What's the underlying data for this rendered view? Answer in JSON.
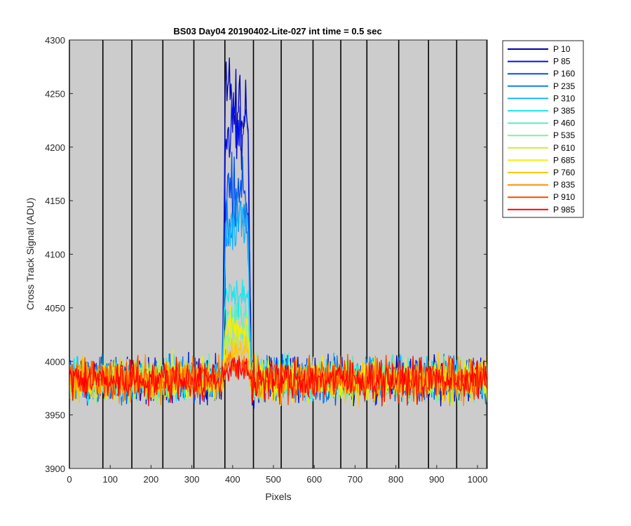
{
  "chart_data": {
    "type": "line",
    "title": "BS03 Day04 20190402-Lite-027 int time = 0.5 sec",
    "xlabel": "Pixels",
    "ylabel": "Cross Track Signal (ADU)",
    "xlim": [
      0,
      1024
    ],
    "ylim": [
      3900,
      4300
    ],
    "xticks": [
      0,
      100,
      200,
      300,
      400,
      500,
      600,
      700,
      800,
      900,
      1000
    ],
    "yticks": [
      3900,
      3950,
      4000,
      4050,
      4100,
      4150,
      4200,
      4250,
      4300
    ],
    "background": "#cccccc",
    "vertical_lines_x": [
      0,
      82,
      153,
      229,
      305,
      381,
      451,
      519,
      597,
      665,
      729,
      807,
      880,
      949,
      1023
    ],
    "legend_position": "outside-right",
    "baseline": 3983,
    "noise_amplitude": 12,
    "peak_range": [
      375,
      445
    ],
    "series": [
      {
        "name": "P 10",
        "color": "#0000b4",
        "peak": 4240
      },
      {
        "name": "P 85",
        "color": "#0012e6",
        "peak": 4215
      },
      {
        "name": "P 160",
        "color": "#0050f0",
        "peak": 4160
      },
      {
        "name": "P 235",
        "color": "#0a82eb",
        "peak": 4135
      },
      {
        "name": "P 310",
        "color": "#14b4ff",
        "peak": 4125
      },
      {
        "name": "P 385",
        "color": "#1ee6f0",
        "peak": 4060
      },
      {
        "name": "P 460",
        "color": "#50f0c8",
        "peak": 4040
      },
      {
        "name": "P 535",
        "color": "#82f096",
        "peak": 4030
      },
      {
        "name": "P 610",
        "color": "#c8f032",
        "peak": 4020
      },
      {
        "name": "P 685",
        "color": "#f5f000",
        "peak": 4030
      },
      {
        "name": "P 760",
        "color": "#ffc800",
        "peak": 4010
      },
      {
        "name": "P 835",
        "color": "#ff8c00",
        "peak": 4000
      },
      {
        "name": "P 910",
        "color": "#ff4600",
        "peak": 3995
      },
      {
        "name": "P 985",
        "color": "#ff0000",
        "peak": 3993
      }
    ]
  }
}
